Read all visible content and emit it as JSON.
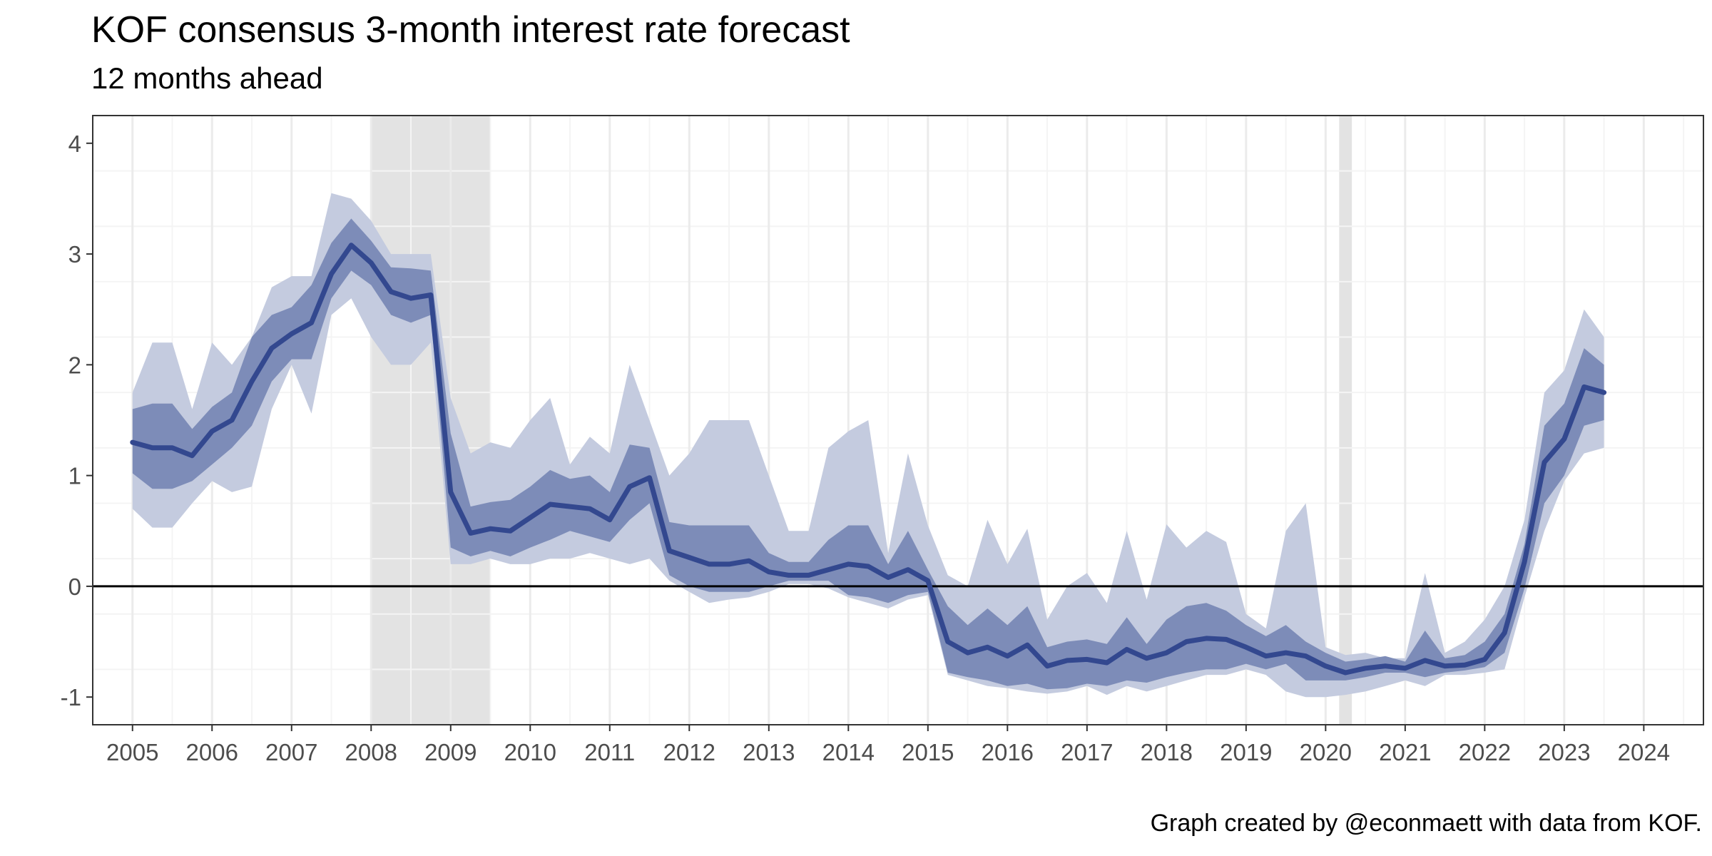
{
  "chart_data": {
    "type": "area",
    "title": "KOF consensus 3-month interest rate forecast",
    "subtitle": "12 months ahead",
    "caption": "Graph created by @econmaett with data from KOF.",
    "xlabel": "",
    "ylabel": "",
    "xlim": [
      2004.5,
      2024.75
    ],
    "ylim": [
      -1.25,
      4.25
    ],
    "x_ticks": [
      2005,
      2006,
      2007,
      2008,
      2009,
      2010,
      2011,
      2012,
      2013,
      2014,
      2015,
      2016,
      2017,
      2018,
      2019,
      2020,
      2021,
      2022,
      2023,
      2024
    ],
    "y_ticks": [
      -1,
      0,
      1,
      2,
      3,
      4
    ],
    "grid": true,
    "zero_line": true,
    "colors": {
      "outer_band": "#c4cbdf",
      "inner_band": "#7d8cb8",
      "median_line": "#33488f",
      "shade": "#e3e3e3",
      "panel_border": "#333333",
      "grid_major": "#ebebeb",
      "grid_minor": "#f4f4f4"
    },
    "shaded_periods": [
      [
        2008.0,
        2009.5
      ],
      [
        2020.17,
        2020.33
      ]
    ],
    "series": [
      {
        "x": [
          2005.0,
          2005.25,
          2005.5,
          2005.75,
          2006.0,
          2006.25,
          2006.5,
          2006.75,
          2007.0,
          2007.25,
          2007.5,
          2007.75,
          2008.0,
          2008.25,
          2008.5,
          2008.75,
          2009.0,
          2009.25,
          2009.5,
          2009.75,
          2010.0,
          2010.25,
          2010.5,
          2010.75,
          2011.0,
          2011.25,
          2011.5,
          2011.75,
          2012.0,
          2012.25,
          2012.5,
          2012.75,
          2013.0,
          2013.25,
          2013.5,
          2013.75,
          2014.0,
          2014.25,
          2014.5,
          2014.75,
          2015.0,
          2015.25,
          2015.5,
          2015.75,
          2016.0,
          2016.25,
          2016.5,
          2016.75,
          2017.0,
          2017.25,
          2017.5,
          2017.75,
          2018.0,
          2018.25,
          2018.5,
          2018.75,
          2019.0,
          2019.25,
          2019.5,
          2019.75,
          2020.0,
          2020.25,
          2020.5,
          2020.75,
          2021.0,
          2021.25,
          2021.5,
          2021.75,
          2022.0,
          2022.25,
          2022.5,
          2022.75,
          2023.0,
          2023.25,
          2023.5
        ],
        "median": [
          1.3,
          1.25,
          1.25,
          1.18,
          1.4,
          1.5,
          1.85,
          2.15,
          2.28,
          2.38,
          2.82,
          3.08,
          2.92,
          2.66,
          2.6,
          2.63,
          0.85,
          0.48,
          0.52,
          0.5,
          0.62,
          0.74,
          0.72,
          0.7,
          0.6,
          0.9,
          0.98,
          0.32,
          0.26,
          0.2,
          0.2,
          0.23,
          0.13,
          0.1,
          0.1,
          0.15,
          0.2,
          0.18,
          0.08,
          0.15,
          0.05,
          -0.5,
          -0.6,
          -0.55,
          -0.63,
          -0.53,
          -0.72,
          -0.67,
          -0.66,
          -0.69,
          -0.57,
          -0.65,
          -0.6,
          -0.5,
          -0.47,
          -0.48,
          -0.55,
          -0.63,
          -0.6,
          -0.63,
          -0.72,
          -0.78,
          -0.74,
          -0.72,
          -0.74,
          -0.67,
          -0.72,
          -0.71,
          -0.66,
          -0.42,
          0.22,
          1.12,
          1.33,
          1.8,
          1.75
        ],
        "inner_low": [
          1.02,
          0.88,
          0.88,
          0.95,
          1.1,
          1.25,
          1.45,
          1.85,
          2.05,
          2.05,
          2.6,
          2.85,
          2.72,
          2.45,
          2.38,
          2.45,
          0.35,
          0.27,
          0.32,
          0.27,
          0.35,
          0.42,
          0.5,
          0.45,
          0.4,
          0.6,
          0.75,
          0.1,
          0.0,
          -0.05,
          -0.05,
          -0.05,
          0.0,
          0.05,
          0.05,
          0.05,
          -0.08,
          -0.1,
          -0.15,
          -0.08,
          -0.05,
          -0.78,
          -0.82,
          -0.85,
          -0.9,
          -0.88,
          -0.93,
          -0.92,
          -0.88,
          -0.9,
          -0.85,
          -0.87,
          -0.82,
          -0.78,
          -0.75,
          -0.75,
          -0.7,
          -0.75,
          -0.7,
          -0.85,
          -0.85,
          -0.85,
          -0.82,
          -0.78,
          -0.78,
          -0.82,
          -0.78,
          -0.76,
          -0.73,
          -0.6,
          -0.02,
          0.75,
          1.0,
          1.45,
          1.5
        ],
        "inner_high": [
          1.6,
          1.65,
          1.65,
          1.42,
          1.62,
          1.75,
          2.25,
          2.45,
          2.52,
          2.72,
          3.1,
          3.32,
          3.12,
          2.88,
          2.87,
          2.85,
          1.38,
          0.72,
          0.76,
          0.78,
          0.9,
          1.05,
          0.97,
          1.0,
          0.85,
          1.28,
          1.25,
          0.58,
          0.55,
          0.55,
          0.55,
          0.55,
          0.3,
          0.22,
          0.22,
          0.42,
          0.55,
          0.55,
          0.2,
          0.5,
          0.15,
          -0.18,
          -0.35,
          -0.2,
          -0.35,
          -0.18,
          -0.55,
          -0.5,
          -0.48,
          -0.52,
          -0.28,
          -0.52,
          -0.3,
          -0.18,
          -0.15,
          -0.22,
          -0.35,
          -0.45,
          -0.35,
          -0.5,
          -0.6,
          -0.68,
          -0.66,
          -0.63,
          -0.68,
          -0.4,
          -0.65,
          -0.62,
          -0.5,
          -0.25,
          0.38,
          1.45,
          1.65,
          2.15,
          2.0
        ],
        "outer_low": [
          0.7,
          0.53,
          0.53,
          0.75,
          0.95,
          0.85,
          0.9,
          1.6,
          2.0,
          1.56,
          2.45,
          2.6,
          2.25,
          2.0,
          2.0,
          2.2,
          0.2,
          0.2,
          0.25,
          0.2,
          0.2,
          0.25,
          0.25,
          0.3,
          0.25,
          0.2,
          0.25,
          0.05,
          -0.05,
          -0.15,
          -0.12,
          -0.1,
          -0.05,
          0.02,
          0.02,
          -0.02,
          -0.1,
          -0.15,
          -0.2,
          -0.12,
          -0.08,
          -0.8,
          -0.85,
          -0.9,
          -0.92,
          -0.95,
          -0.97,
          -0.95,
          -0.9,
          -0.98,
          -0.9,
          -0.95,
          -0.9,
          -0.85,
          -0.8,
          -0.8,
          -0.75,
          -0.8,
          -0.95,
          -1.0,
          -1.0,
          -0.98,
          -0.95,
          -0.9,
          -0.85,
          -0.9,
          -0.8,
          -0.8,
          -0.78,
          -0.75,
          -0.1,
          0.5,
          0.95,
          1.2,
          1.25
        ],
        "outer_high": [
          1.75,
          2.2,
          2.2,
          1.6,
          2.2,
          2.0,
          2.25,
          2.7,
          2.8,
          2.8,
          3.55,
          3.5,
          3.3,
          3.0,
          3.0,
          3.0,
          1.7,
          1.2,
          1.3,
          1.25,
          1.5,
          1.7,
          1.1,
          1.35,
          1.2,
          2.0,
          1.5,
          1.0,
          1.2,
          1.5,
          1.5,
          1.5,
          1.0,
          0.5,
          0.5,
          1.25,
          1.4,
          1.5,
          0.3,
          1.2,
          0.55,
          0.1,
          0.0,
          0.6,
          0.2,
          0.52,
          -0.3,
          0.0,
          0.12,
          -0.15,
          0.5,
          -0.12,
          0.56,
          0.35,
          0.5,
          0.4,
          -0.25,
          -0.38,
          0.5,
          0.75,
          -0.55,
          -0.62,
          -0.6,
          -0.65,
          -0.65,
          0.12,
          -0.6,
          -0.5,
          -0.3,
          0.0,
          0.6,
          1.75,
          1.95,
          2.5,
          2.25
        ]
      }
    ]
  }
}
